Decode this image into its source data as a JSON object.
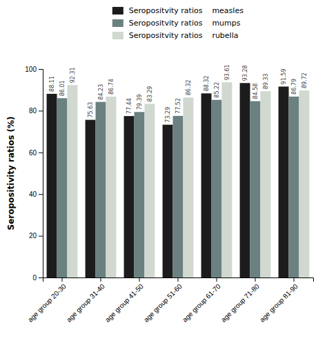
{
  "chart_data": {
    "type": "bar",
    "categories": [
      "age group 20-30",
      "age group 31-40",
      "age group 41-50",
      "age group 51-60",
      "age group 61-70",
      "age group 71-80",
      "age group 81-90"
    ],
    "series": [
      {
        "name": "Seropositvity ratios    measles",
        "color": "#1c1c1c",
        "values": [
          88.11,
          75.63,
          77.44,
          73.29,
          88.32,
          93.28,
          91.59
        ]
      },
      {
        "name": "Seropositvity ratios    mumps",
        "color": "#6b8080",
        "values": [
          86.01,
          84.23,
          79.39,
          77.52,
          85.22,
          84.58,
          86.79
        ]
      },
      {
        "name": "Seropositvity ratios    rubella",
        "color": "#d0d8d0",
        "values": [
          92.31,
          86.74,
          83.29,
          86.32,
          93.61,
          89.33,
          89.72
        ]
      }
    ],
    "ylabel": "Seropositivity ratios (%)",
    "ylim": [
      0,
      100
    ],
    "yticks": [
      0,
      20,
      40,
      60,
      80,
      100
    ],
    "data_labels": true,
    "legend": "top",
    "grid": false
  }
}
